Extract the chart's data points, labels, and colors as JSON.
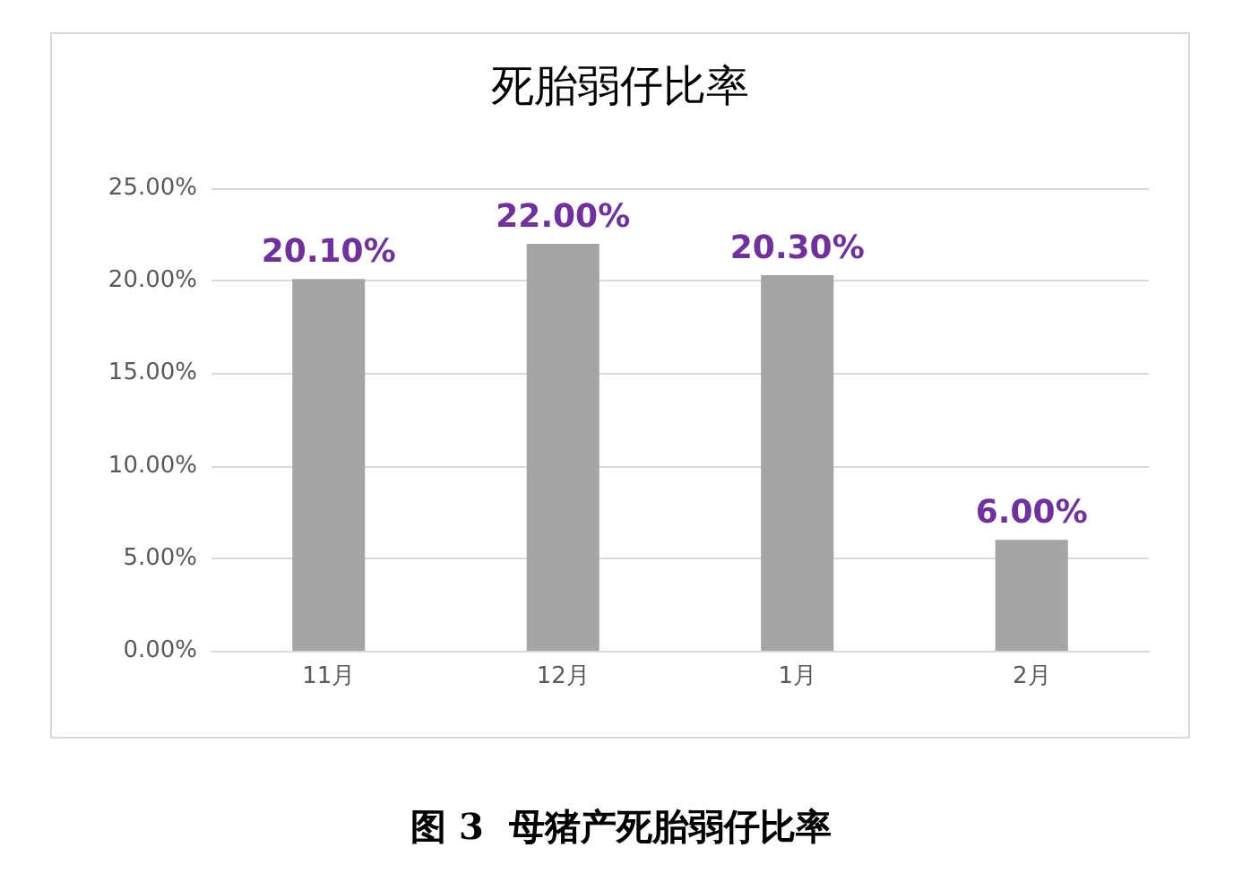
{
  "chart_data": {
    "type": "bar",
    "title": "死胎弱仔比率",
    "categories": [
      "11月",
      "12月",
      "1月",
      "2月"
    ],
    "values": [
      20.1,
      22.0,
      20.3,
      6.0
    ],
    "value_labels": [
      "20.10%",
      "22.00%",
      "20.30%",
      "6.00%"
    ],
    "color": "#a5a5a5",
    "ylim": [
      0,
      25
    ],
    "yticks": [
      {
        "value": 0,
        "label": "0.00%"
      },
      {
        "value": 5,
        "label": "5.00%"
      },
      {
        "value": 10,
        "label": "10.00%"
      },
      {
        "value": 15,
        "label": "15.00%"
      },
      {
        "value": 20,
        "label": "20.00%"
      },
      {
        "value": 25,
        "label": "25.00%"
      }
    ],
    "grid": "y",
    "annotations": [
      "图 3  母猪产死胎弱仔比率"
    ]
  }
}
